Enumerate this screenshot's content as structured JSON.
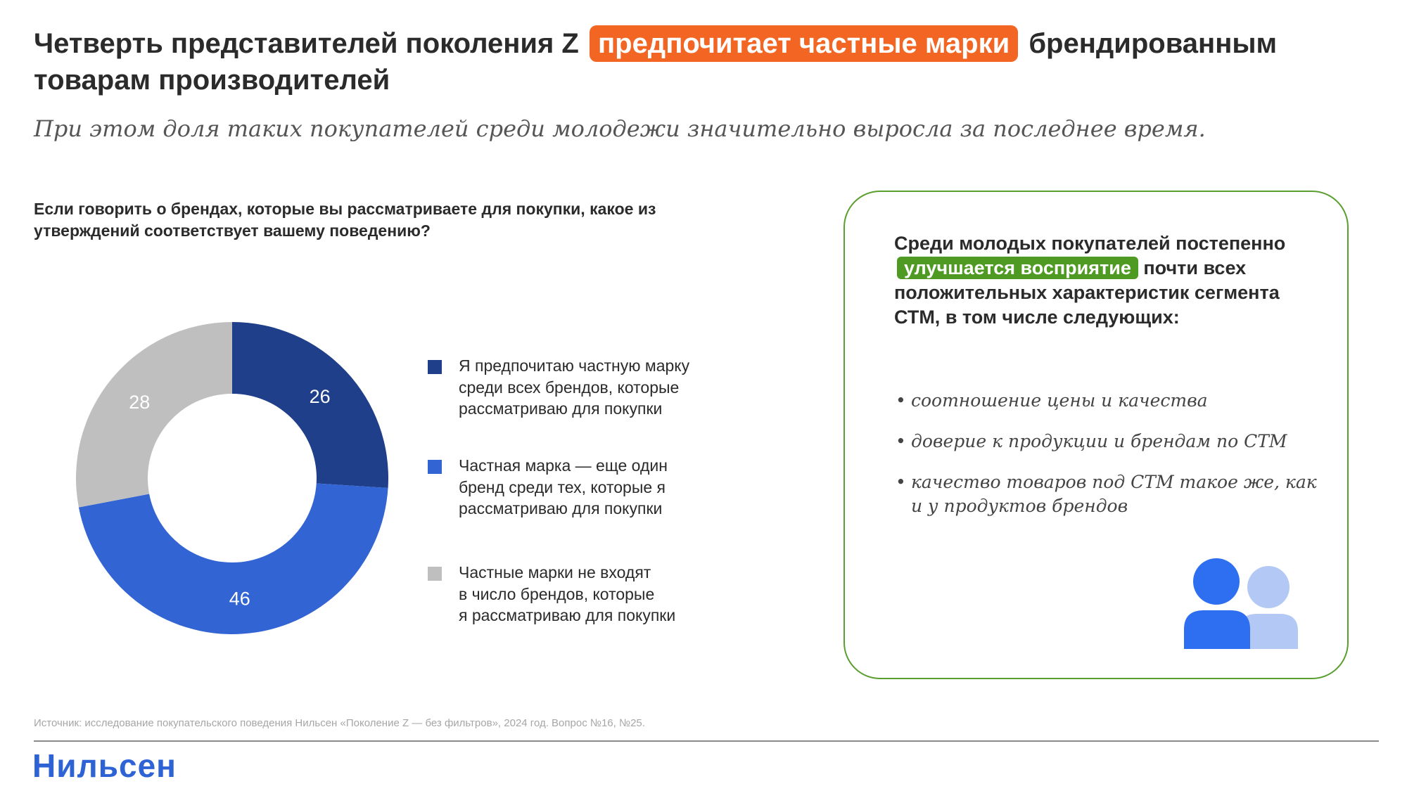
{
  "title": {
    "part1": "Четверть представителей поколения Z",
    "highlight": "предпочитает частные марки",
    "part2": "брендированным товарам производителей"
  },
  "subtitle": "При этом доля таких покупателей среди молодежи значительно выросла за последнее время.",
  "question": "Если говорить о брендах, которые вы рассматриваете для покупки, какое из утверждений соответствует вашему поведению?",
  "chart_data": {
    "type": "pie",
    "donut": true,
    "values": [
      26,
      46,
      28
    ],
    "labels": [
      "26",
      "46",
      "28"
    ],
    "colors": [
      "#1f3f8a",
      "#3264d4",
      "#bfbfbf"
    ],
    "legend": [
      {
        "lines": [
          "Я предпочитаю частную марку",
          "среди всех брендов, которые",
          "рассматриваю для покупки"
        ]
      },
      {
        "lines": [
          "Частная марка — еще один",
          "бренд среди тех, которые я",
          "рассматриваю для покупки"
        ]
      },
      {
        "lines": [
          "Частные марки не входят",
          "в число брендов, которые",
          "я рассматриваю для покупки"
        ]
      }
    ],
    "legend_placement": "right"
  },
  "card": {
    "head_part1": "Среди молодых покупателей постепенно",
    "head_highlight": "улучшается восприятие",
    "head_part2": "почти всех положительных характеристик сегмента СТМ, в том числе следующих:",
    "bullets": [
      "соотношение цены и качества",
      "доверие к продукции и брендам по СТМ",
      "качество товаров под СТМ такое же, как и у продуктов брендов"
    ],
    "icon": "people-icon"
  },
  "source": "Источник: исследование покупательского поведения Нильсен «Поколение Z — без фильтров», 2024 год. Вопрос №16, №25.",
  "logo": "Нильсен"
}
